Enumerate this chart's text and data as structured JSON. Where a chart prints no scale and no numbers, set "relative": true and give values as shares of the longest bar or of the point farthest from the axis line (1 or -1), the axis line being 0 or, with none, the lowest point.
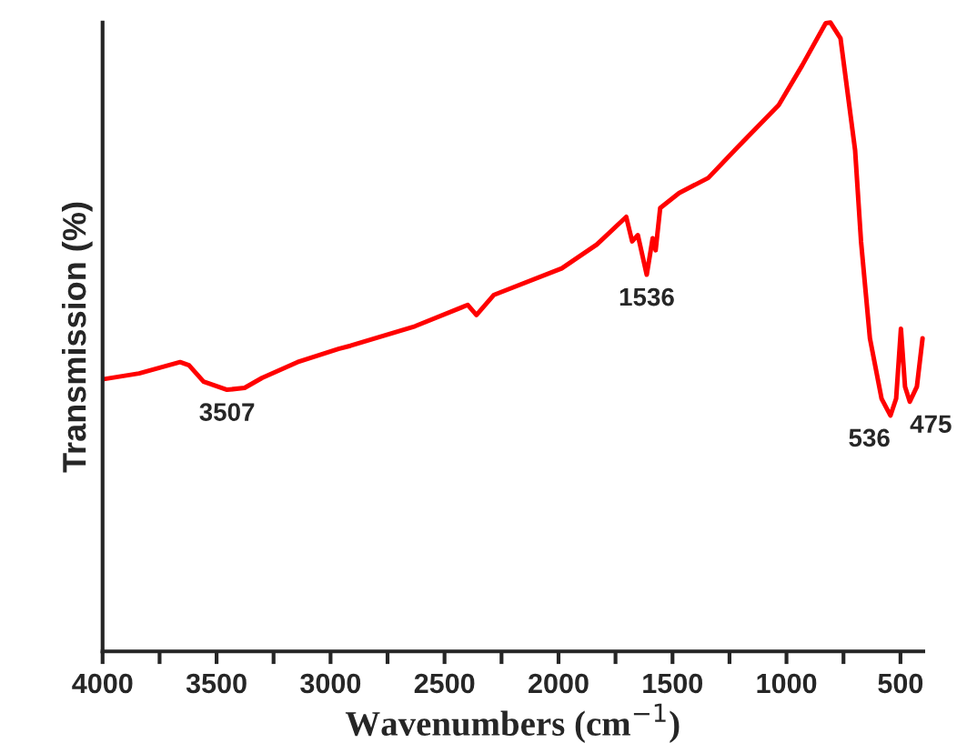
{
  "chart_data": {
    "type": "line",
    "relative": true,
    "xlabel": "Wavenumbers (cm$^{−1}$)",
    "ylabel": "Transmission (%)",
    "xlim": [
      4000,
      400
    ],
    "xticks": [
      4000,
      {
        "value": 3750,
        "label": null
      },
      3500,
      {
        "value": 3250,
        "label": null
      },
      3000,
      {
        "value": 2750,
        "label": null
      },
      2500,
      {
        "value": 2250,
        "label": null
      },
      2000,
      {
        "value": 1750,
        "label": null
      },
      1500,
      {
        "value": 1250,
        "label": null
      },
      1000,
      {
        "value": 750,
        "label": null
      },
      500
    ],
    "series": [
      {
        "color": "#ff0000",
        "x": [
          3995,
          3840,
          3660,
          3621,
          3557,
          3454,
          3377,
          3300,
          3145,
          2965,
          2913,
          2630,
          2398,
          2360,
          2283,
          1986,
          1832,
          1703,
          1677,
          1652,
          1613,
          1587,
          1574,
          1554,
          1471,
          1343,
          1214,
          1034,
          931,
          828,
          807,
          763,
          699,
          673,
          634,
          583,
          544,
          519,
          498,
          480,
          459,
          428,
          403
        ],
        "values": [
          0.433,
          0.442,
          0.46,
          0.455,
          0.429,
          0.416,
          0.419,
          0.435,
          0.46,
          0.481,
          0.486,
          0.517,
          0.551,
          0.535,
          0.567,
          0.609,
          0.647,
          0.691,
          0.652,
          0.662,
          0.599,
          0.657,
          0.638,
          0.705,
          0.729,
          0.753,
          0.802,
          0.869,
          0.932,
          0.999,
          1.0,
          0.975,
          0.797,
          0.652,
          0.498,
          0.402,
          0.375,
          0.402,
          0.513,
          0.421,
          0.397,
          0.421,
          0.498
        ]
      }
    ],
    "annotations": [
      {
        "text": "3507",
        "x": 3454,
        "y": 0.416
      },
      {
        "text": "1536",
        "x": 1613,
        "y": 0.599
      },
      {
        "text": "536",
        "x": 544,
        "y": 0.375
      },
      {
        "text": "475",
        "x": 459,
        "y": 0.397
      }
    ],
    "grid": false,
    "legend": false,
    "marker": "none",
    "line_style": "solid"
  }
}
